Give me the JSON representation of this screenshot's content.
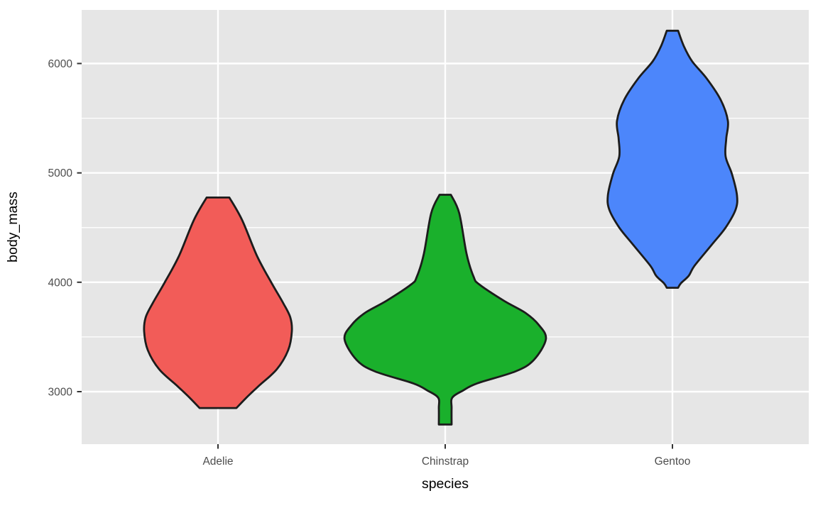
{
  "figure": {
    "x_title": "species",
    "y_title": "body_mass"
  },
  "chart_data": {
    "type": "violin",
    "title": "",
    "xlabel": "species",
    "ylabel": "body_mass",
    "legend": "none",
    "categories": [
      "Adelie",
      "Chinstrap",
      "Gentoo"
    ],
    "y_axis": {
      "major_ticks": [
        3000,
        4000,
        5000,
        6000
      ],
      "minor_gridlines": [
        3500,
        4500,
        5500
      ],
      "domain": [
        2520,
        6490
      ]
    },
    "style": {
      "panel_bg": "#E6E6E6",
      "grid_color": "#FFFFFF",
      "outline_color": "#1C1C1C",
      "tick_color": "#333333",
      "tick_label_color": "#4D4D4D",
      "axis_title_color": "#000000"
    },
    "violins": [
      {
        "species": "Adelie",
        "fill": "#F25C58",
        "body_mass_range": [
          2850,
          4775
        ],
        "profile": [
          [
            4775,
            0.05
          ],
          [
            4570,
            0.106
          ],
          [
            4240,
            0.172
          ],
          [
            4000,
            0.234
          ],
          [
            3810,
            0.287
          ],
          [
            3680,
            0.318
          ],
          [
            3550,
            0.325
          ],
          [
            3380,
            0.309
          ],
          [
            3205,
            0.259
          ],
          [
            3055,
            0.181
          ],
          [
            2945,
            0.125
          ],
          [
            2850,
            0.081
          ]
        ]
      },
      {
        "species": "Chinstrap",
        "fill": "#1AB02C",
        "body_mass_range": [
          2700,
          4800
        ],
        "profile": [
          [
            4800,
            0.025
          ],
          [
            4630,
            0.062
          ],
          [
            4260,
            0.094
          ],
          [
            4050,
            0.125
          ],
          [
            3980,
            0.15
          ],
          [
            3830,
            0.259
          ],
          [
            3720,
            0.353
          ],
          [
            3610,
            0.412
          ],
          [
            3480,
            0.443
          ],
          [
            3290,
            0.39
          ],
          [
            3185,
            0.309
          ],
          [
            3075,
            0.14
          ],
          [
            3010,
            0.078
          ],
          [
            2945,
            0.031
          ],
          [
            2850,
            0.028
          ],
          [
            2700,
            0.028
          ]
        ]
      },
      {
        "species": "Gentoo",
        "fill": "#4C86FB",
        "body_mass_range": [
          3950,
          6300
        ],
        "profile": [
          [
            6300,
            0.025
          ],
          [
            6160,
            0.05
          ],
          [
            6020,
            0.087
          ],
          [
            5865,
            0.15
          ],
          [
            5670,
            0.212
          ],
          [
            5475,
            0.244
          ],
          [
            5315,
            0.237
          ],
          [
            5150,
            0.234
          ],
          [
            4990,
            0.262
          ],
          [
            4795,
            0.284
          ],
          [
            4665,
            0.278
          ],
          [
            4500,
            0.234
          ],
          [
            4340,
            0.172
          ],
          [
            4150,
            0.097
          ],
          [
            4060,
            0.072
          ],
          [
            3990,
            0.037
          ],
          [
            3950,
            0.025
          ]
        ]
      }
    ]
  }
}
